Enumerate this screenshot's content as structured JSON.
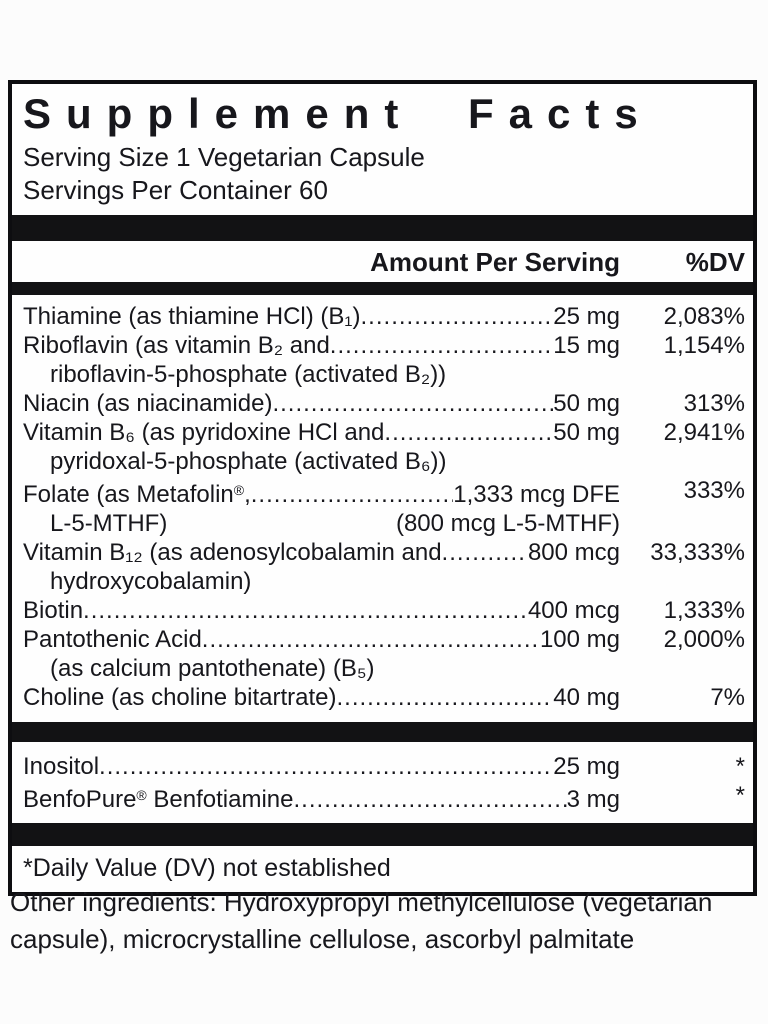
{
  "label": {
    "title": "Supplement Facts",
    "serving_size": "Serving Size 1 Vegetarian Capsule",
    "servings_per_container": "Servings Per Container 60",
    "header": {
      "amount_col": "Amount Per Serving",
      "dv_col": "%DV"
    },
    "footnote": "*Daily Value (DV) not established",
    "colors": {
      "text": "#17171c",
      "divider_bar": "#121214",
      "panel_border": "#0d0d10",
      "background": "#fcfcfc"
    }
  },
  "rows": [
    {
      "name": "Thiamine (as thiamine HCl) (B₁)",
      "amount": "25 mg",
      "dv": "2,083%"
    },
    {
      "name": "Riboflavin (as vitamin B₂ and",
      "amount": "15 mg",
      "dv": "1,154%",
      "cont": "riboflavin-5-phosphate (activated B₂))"
    },
    {
      "name": "Niacin (as niacinamide)",
      "amount": "50 mg",
      "dv": "313%"
    },
    {
      "name": "Vitamin B₆ (as pyridoxine HCl and",
      "amount": "50 mg",
      "dv": "2,941%",
      "cont": "pyridoxal-5-phosphate (activated B₆))"
    },
    {
      "name_pre": "Folate (as Metafolin",
      "name_reg": "®",
      "name_post": ",",
      "amount": "1,333 mcg DFE",
      "dv": "333%",
      "cont": "L-5-MTHF)",
      "cont_right": "(800 mcg L-5-MTHF)"
    },
    {
      "name": "Vitamin B₁₂ (as adenosylcobalamin and",
      "amount": "800 mcg",
      "dv": "33,333%",
      "cont": "hydroxycobalamin)"
    },
    {
      "name": "Biotin",
      "amount": "400 mcg",
      "dv": "1,333%"
    },
    {
      "name": "Pantothenic Acid",
      "amount": "100 mg",
      "dv": "2,000%",
      "cont": "(as calcium pantothenate) (B₅)"
    },
    {
      "name": "Choline (as choline bitartrate)",
      "amount": "40 mg",
      "dv": "7%"
    }
  ],
  "rows2": [
    {
      "name": "Inositol",
      "amount": "25 mg",
      "dv": "*"
    },
    {
      "name_pre": "BenfoPure",
      "name_reg": "®",
      "name_post": " Benfotiamine",
      "amount": "3 mg",
      "dv": "*"
    }
  ],
  "other_ingredients": "Other ingredients: Hydroxypropyl methylcellulose (vegetarian capsule), microcrystalline cellulose, ascorbyl palmitate"
}
